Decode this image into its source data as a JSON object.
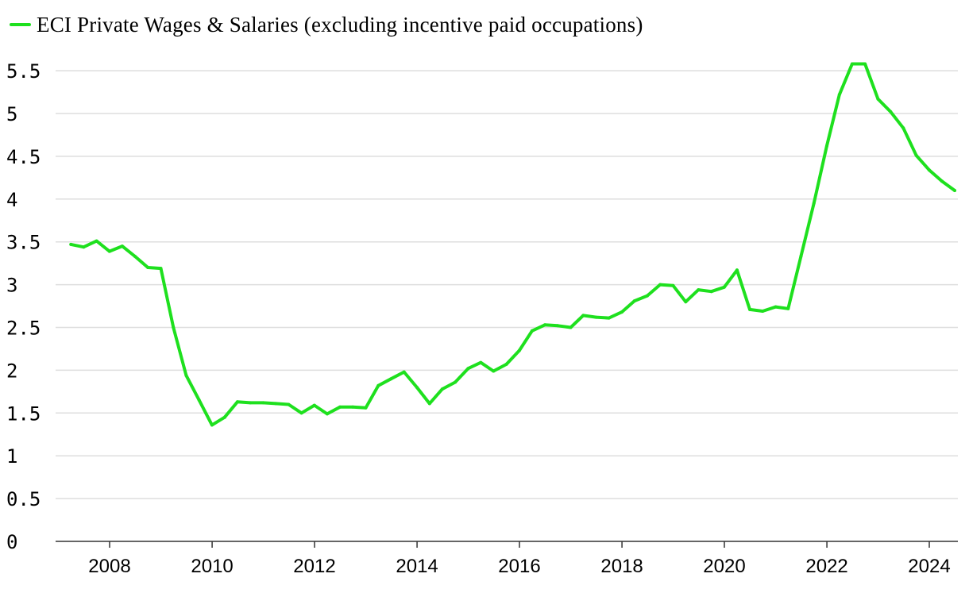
{
  "legend": {
    "label": "ECI Private Wages & Salaries (excluding incentive paid occupations)"
  },
  "colors": {
    "series": "#1ee01e",
    "grid": "#dedede",
    "axis": "#333333",
    "text": "#000000"
  },
  "chart_data": {
    "type": "line",
    "title": "",
    "xlabel": "",
    "ylabel": "",
    "grid": true,
    "legend_position": "top-left",
    "ylim": [
      0,
      5.6
    ],
    "xlim": [
      "2007-01-01",
      "2024-12-31"
    ],
    "y_ticks": [
      "0",
      "0.5",
      "1",
      "1.5",
      "2",
      "2.5",
      "3",
      "3.5",
      "4",
      "4.5",
      "5",
      "5.5"
    ],
    "x_ticks": [
      "2008",
      "2010",
      "2012",
      "2014",
      "2016",
      "2018",
      "2020",
      "2022",
      "2024"
    ],
    "series": [
      {
        "name": "ECI Private Wages & Salaries (excluding incentive paid occupations)",
        "x": [
          "2007-03-31",
          "2007-06-30",
          "2007-09-30",
          "2007-12-31",
          "2008-03-31",
          "2008-06-30",
          "2008-09-30",
          "2008-12-31",
          "2009-03-31",
          "2009-06-30",
          "2009-09-30",
          "2009-12-31",
          "2010-03-31",
          "2010-06-30",
          "2010-09-30",
          "2010-12-31",
          "2011-03-31",
          "2011-06-30",
          "2011-09-30",
          "2011-12-31",
          "2012-03-31",
          "2012-06-30",
          "2012-09-30",
          "2012-12-31",
          "2013-03-31",
          "2013-06-30",
          "2013-09-30",
          "2013-12-31",
          "2014-03-31",
          "2014-06-30",
          "2014-09-30",
          "2014-12-31",
          "2015-03-31",
          "2015-06-30",
          "2015-09-30",
          "2015-12-31",
          "2016-03-31",
          "2016-06-30",
          "2016-09-30",
          "2016-12-31",
          "2017-03-31",
          "2017-06-30",
          "2017-09-30",
          "2017-12-31",
          "2018-03-31",
          "2018-06-30",
          "2018-09-30",
          "2018-12-31",
          "2019-03-31",
          "2019-06-30",
          "2019-09-30",
          "2019-12-31",
          "2020-03-31",
          "2020-06-30",
          "2020-09-30",
          "2020-12-31",
          "2021-03-31",
          "2021-06-30",
          "2021-09-30",
          "2021-12-31",
          "2022-03-31",
          "2022-06-30",
          "2022-09-30",
          "2022-12-31",
          "2023-03-31",
          "2023-06-30",
          "2023-09-30",
          "2023-12-31",
          "2024-03-31",
          "2024-06-30"
        ],
        "values": [
          3.47,
          3.44,
          3.51,
          3.39,
          3.45,
          3.33,
          3.2,
          3.19,
          2.5,
          1.94,
          1.65,
          1.36,
          1.45,
          1.63,
          1.62,
          1.62,
          1.61,
          1.6,
          1.5,
          1.59,
          1.49,
          1.57,
          1.57,
          1.56,
          1.82,
          1.9,
          1.98,
          1.8,
          1.61,
          1.78,
          1.86,
          2.02,
          2.09,
          1.99,
          2.07,
          2.23,
          2.46,
          2.53,
          2.52,
          2.5,
          2.64,
          2.62,
          2.61,
          2.68,
          2.81,
          2.87,
          3.0,
          2.99,
          2.8,
          2.94,
          2.92,
          2.97,
          3.17,
          2.71,
          2.69,
          2.74,
          2.72,
          3.33,
          3.95,
          4.62,
          5.22,
          5.58,
          5.58,
          5.17,
          5.02,
          4.83,
          4.51,
          4.34,
          4.21,
          4.1
        ]
      }
    ]
  }
}
